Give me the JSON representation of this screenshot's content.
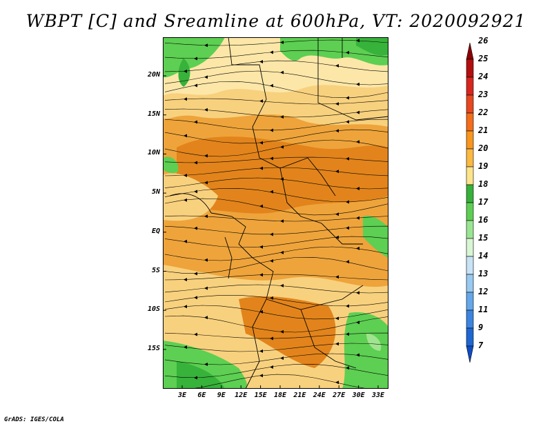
{
  "title": "WBPT [C] and Sreamline at 600hPa, VT: 2020092921",
  "footer": "GrADS: IGES/COLA",
  "lat_labels": [
    "20N",
    "15N",
    "10N",
    "5N",
    "EQ",
    "5S",
    "10S",
    "15S"
  ],
  "lon_labels": [
    "3E",
    "6E",
    "9E",
    "12E",
    "15E",
    "18E",
    "21E",
    "24E",
    "27E",
    "30E",
    "33E"
  ],
  "colorbar": {
    "labels": [
      "26",
      "25",
      "24",
      "23",
      "22",
      "21",
      "20",
      "19",
      "18",
      "17",
      "16",
      "15",
      "14",
      "13",
      "12",
      "11",
      "9",
      "7"
    ],
    "colors": [
      "#8b0000",
      "#b40f0f",
      "#d7261e",
      "#e8471f",
      "#f46d1b",
      "#f8961e",
      "#fbb941",
      "#fde48b",
      "#36b13a",
      "#5ccf53",
      "#9ae591",
      "#d9f6d4",
      "#c8e3f6",
      "#98c9f1",
      "#64a8ea",
      "#3b85e0",
      "#1e67d3",
      "#0f4cc4"
    ]
  },
  "map_colors": {
    "orange_dark": "#e2841b",
    "orange": "#eea43b",
    "light": "#f8d17e",
    "pale": "#fce7a8",
    "green": "#5dcf52",
    "green_dark": "#37b23a",
    "green_light": "#a0e48f"
  }
}
